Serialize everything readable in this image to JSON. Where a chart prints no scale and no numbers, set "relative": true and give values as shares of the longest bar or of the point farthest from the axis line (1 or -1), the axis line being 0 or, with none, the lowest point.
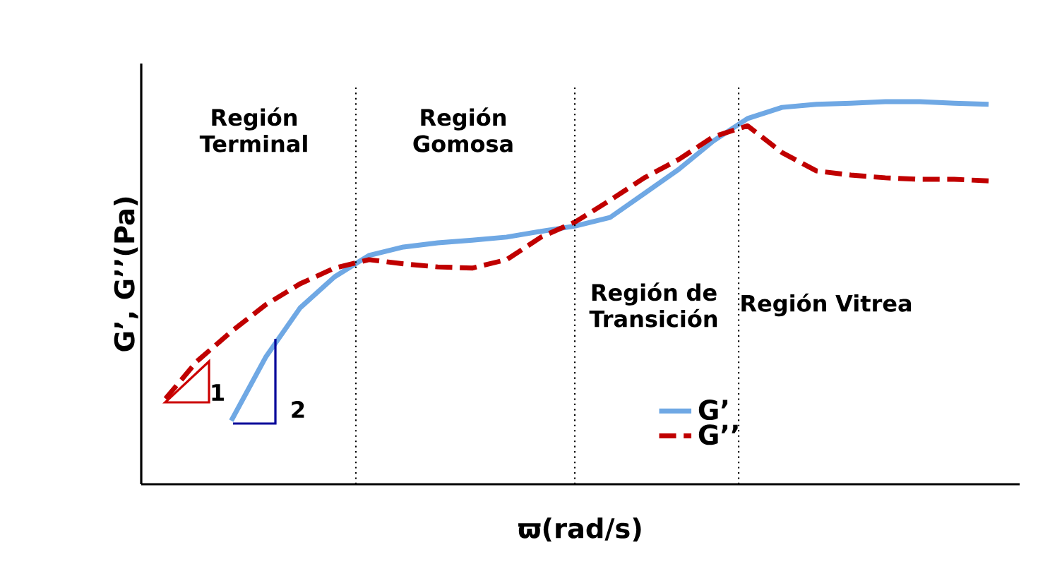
{
  "chart_data": {
    "type": "line",
    "relative": true,
    "xlabel": "ϖ(rad/s)",
    "ylabel": "G’, G’’(Pa)",
    "categories": [
      null,
      null,
      null,
      null,
      null,
      null,
      null,
      null,
      null,
      null,
      null,
      null,
      null,
      null,
      null,
      null,
      null,
      null,
      null,
      null,
      null,
      null,
      null,
      null,
      null
    ],
    "series": [
      {
        "name": "G’",
        "color": "#6fa8e4",
        "line_style": "solid",
        "values": [
          null,
          null,
          0.166,
          0.332,
          0.461,
          0.542,
          0.598,
          0.62,
          0.631,
          0.638,
          0.646,
          0.661,
          0.675,
          0.697,
          0.76,
          0.823,
          0.897,
          0.956,
          0.985,
          0.993,
          0.996,
          1.0,
          1.0,
          0.996,
          0.993
        ]
      },
      {
        "name": "G’’",
        "color": "#c00000",
        "line_style": "dashed",
        "values": [
          0.214,
          0.321,
          0.399,
          0.469,
          0.524,
          0.565,
          0.587,
          0.576,
          0.568,
          0.565,
          0.587,
          0.646,
          0.686,
          0.742,
          0.801,
          0.849,
          0.908,
          0.937,
          0.867,
          0.819,
          0.808,
          0.801,
          0.797,
          0.797,
          0.793
        ]
      }
    ],
    "annotations": [
      "Región Terminal",
      "Región Gomosa",
      "Región de Transición",
      "Región Vitrea",
      "1",
      "2"
    ],
    "legend": "bottom right",
    "marker": "none"
  }
}
